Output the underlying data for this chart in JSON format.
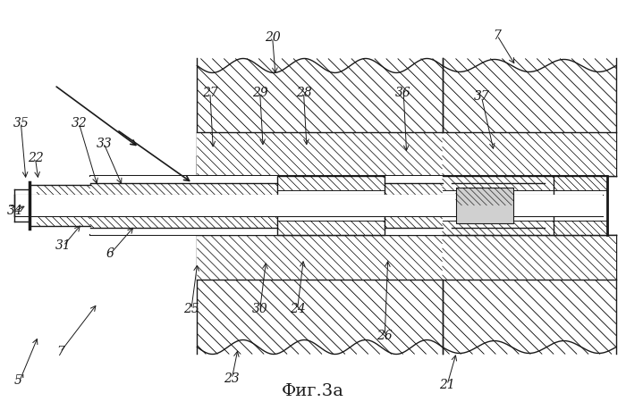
{
  "title": "Фиг.3a",
  "bg_color": "#ffffff",
  "line_color": "#1a1a1a",
  "figsize": [
    7.0,
    4.59
  ],
  "dpi": 100,
  "labels": {
    "5p": [
      0.03,
      0.93,
      "5'"
    ],
    "7a": [
      0.095,
      0.86,
      "7"
    ],
    "6": [
      0.175,
      0.62,
      "6"
    ],
    "34": [
      0.022,
      0.515,
      "34"
    ],
    "31": [
      0.1,
      0.6,
      "31"
    ],
    "22": [
      0.055,
      0.385,
      "22"
    ],
    "33": [
      0.165,
      0.35,
      "33"
    ],
    "35": [
      0.032,
      0.3,
      "35"
    ],
    "32": [
      0.125,
      0.3,
      "32"
    ],
    "23": [
      0.37,
      0.925,
      "23"
    ],
    "25": [
      0.305,
      0.755,
      "25"
    ],
    "30": [
      0.415,
      0.755,
      "30"
    ],
    "24": [
      0.475,
      0.755,
      "24"
    ],
    "26": [
      0.615,
      0.82,
      "26"
    ],
    "27": [
      0.335,
      0.225,
      "27"
    ],
    "29": [
      0.415,
      0.225,
      "29"
    ],
    "28": [
      0.485,
      0.225,
      "28"
    ],
    "20": [
      0.435,
      0.09,
      "20"
    ],
    "21": [
      0.715,
      0.94,
      "21"
    ],
    "36": [
      0.645,
      0.225,
      "36"
    ],
    "37": [
      0.77,
      0.235,
      "37"
    ],
    "7b": [
      0.795,
      0.085,
      "7"
    ]
  }
}
